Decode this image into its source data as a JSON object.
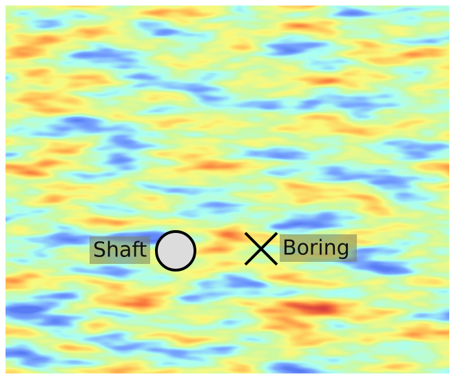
{
  "labels": {
    "shaft": "Shaft",
    "boring": "Boring"
  }
}
